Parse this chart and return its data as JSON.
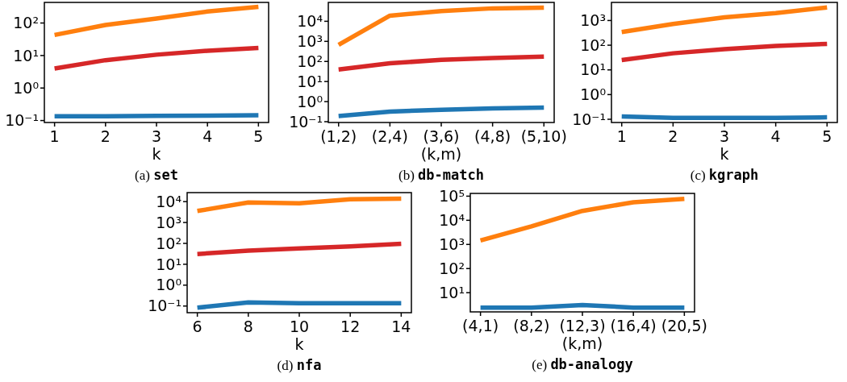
{
  "chart_data": [
    {
      "type": "line",
      "title": "(a) set",
      "xlabel": "k",
      "x": [
        1,
        2,
        3,
        4,
        5
      ],
      "xlim": [
        0.8,
        5.2
      ],
      "xticks": [
        1,
        2,
        3,
        4,
        5
      ],
      "log": "y",
      "ylim": [
        0.087,
        430
      ],
      "yticks": [
        {
          "value": 0.1,
          "label": "10⁻¹"
        },
        {
          "value": 1,
          "label": "10⁰"
        },
        {
          "value": 10,
          "label": "10¹"
        },
        {
          "value": 100,
          "label": "10²"
        }
      ],
      "grid": false,
      "series": [
        {
          "color": "#ff7f0e",
          "values": [
            43,
            87,
            138,
            225,
            314
          ]
        },
        {
          "color": "#d62728",
          "values": [
            4,
            7.2,
            10.6,
            14,
            17
          ]
        },
        {
          "color": "#1f77b4",
          "values": [
            0.135,
            0.136,
            0.14,
            0.142,
            0.146
          ]
        }
      ]
    },
    {
      "type": "line",
      "title": "(b) db-match",
      "xlabel": "(k,m)",
      "categories": [
        "(1,2)",
        "(2,4)",
        "(3,6)",
        "(4,8)",
        "(5,10)"
      ],
      "log": "y",
      "ylim": [
        0.091,
        87000
      ],
      "yticks": [
        {
          "value": 0.1,
          "label": "10⁻¹"
        },
        {
          "value": 1,
          "label": "10⁰"
        },
        {
          "value": 10,
          "label": "10¹"
        },
        {
          "value": 100,
          "label": "10²"
        },
        {
          "value": 1000,
          "label": "10³"
        },
        {
          "value": 10000,
          "label": "10⁴"
        }
      ],
      "grid": false,
      "series": [
        {
          "color": "#ff7f0e",
          "values": [
            670,
            19000,
            32000,
            44000,
            48000
          ]
        },
        {
          "color": "#d62728",
          "values": [
            40,
            81,
            120,
            148,
            172
          ]
        },
        {
          "color": "#1f77b4",
          "values": [
            0.19,
            0.32,
            0.39,
            0.46,
            0.5
          ]
        }
      ]
    },
    {
      "type": "line",
      "title": "(c) kgraph",
      "xlabel": "k",
      "x": [
        1,
        2,
        3,
        4,
        5
      ],
      "xlim": [
        0.8,
        5.2
      ],
      "xticks": [
        1,
        2,
        3,
        4,
        5
      ],
      "log": "y",
      "ylim": [
        0.074,
        5400
      ],
      "yticks": [
        {
          "value": 0.1,
          "label": "10⁻¹"
        },
        {
          "value": 1,
          "label": "10⁰"
        },
        {
          "value": 10,
          "label": "10¹"
        },
        {
          "value": 100,
          "label": "10²"
        },
        {
          "value": 1000,
          "label": "10³"
        }
      ],
      "grid": false,
      "series": [
        {
          "color": "#ff7f0e",
          "values": [
            340,
            720,
            1350,
            2000,
            3400
          ]
        },
        {
          "color": "#d62728",
          "values": [
            25,
            47,
            69,
            93,
            113
          ]
        },
        {
          "color": "#1f77b4",
          "values": [
            0.13,
            0.115,
            0.115,
            0.115,
            0.12
          ]
        }
      ]
    },
    {
      "type": "line",
      "title": "(d) nfa",
      "xlabel": "k",
      "x": [
        6,
        8,
        10,
        12,
        14
      ],
      "xlim": [
        5.6,
        14.4
      ],
      "xticks": [
        6,
        8,
        10,
        12,
        14
      ],
      "log": "y",
      "ylim": [
        0.048,
        27000
      ],
      "yticks": [
        {
          "value": 0.1,
          "label": "10⁻¹"
        },
        {
          "value": 1,
          "label": "10⁰"
        },
        {
          "value": 10,
          "label": "10¹"
        },
        {
          "value": 100,
          "label": "10²"
        },
        {
          "value": 1000,
          "label": "10³"
        },
        {
          "value": 10000,
          "label": "10⁴"
        }
      ],
      "grid": false,
      "series": [
        {
          "color": "#ff7f0e",
          "values": [
            3550,
            9100,
            8400,
            13000,
            14000
          ]
        },
        {
          "color": "#d62728",
          "values": [
            31,
            45,
            57,
            72,
            95
          ]
        },
        {
          "color": "#1f77b4",
          "values": [
            0.083,
            0.15,
            0.135,
            0.135,
            0.135
          ]
        }
      ]
    },
    {
      "type": "line",
      "title": "(e) db-analogy",
      "xlabel": "(k,m)",
      "categories": [
        "(4,1)",
        "(8,2)",
        "(12,3)",
        "(16,4)",
        "(20,5)"
      ],
      "log": "y",
      "ylim": [
        1.6,
        130000
      ],
      "yticks": [
        {
          "value": 10,
          "label": "10¹"
        },
        {
          "value": 100,
          "label": "10²"
        },
        {
          "value": 1000,
          "label": "10³"
        },
        {
          "value": 10000,
          "label": "10⁴"
        },
        {
          "value": 100000,
          "label": "10⁵"
        }
      ],
      "grid": false,
      "series": [
        {
          "color": "#ff7f0e",
          "values": [
            1470,
            5600,
            24500,
            56000,
            78000
          ]
        },
        {
          "color": "#1f77b4",
          "values": [
            2.4,
            2.4,
            3.1,
            2.4,
            2.4
          ]
        }
      ]
    }
  ]
}
